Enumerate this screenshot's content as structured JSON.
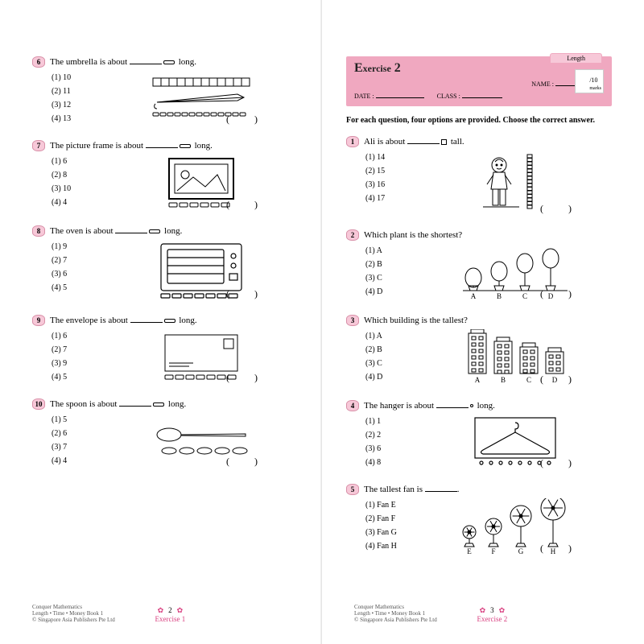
{
  "colors": {
    "pink_badge": "#f7c8d8",
    "pink_header": "#f0a8c0",
    "pink_border": "#d890a8",
    "accent": "#d94080",
    "text": "#000000",
    "page_bg": "#ffffff"
  },
  "left": {
    "questions": [
      {
        "n": "6",
        "text_a": "The umbrella is about ",
        "text_b": " long.",
        "unit": "clip",
        "opts": [
          "10",
          "11",
          "12",
          "13"
        ],
        "svg": "umbrella"
      },
      {
        "n": "7",
        "text_a": "The picture frame is about ",
        "text_b": " long.",
        "unit": "clip",
        "opts": [
          "6",
          "8",
          "10",
          "4"
        ],
        "svg": "frame"
      },
      {
        "n": "8",
        "text_a": "The oven is about ",
        "text_b": " long.",
        "unit": "clip",
        "opts": [
          "9",
          "7",
          "6",
          "5"
        ],
        "svg": "oven"
      },
      {
        "n": "9",
        "text_a": "The envelope is about ",
        "text_b": " long.",
        "unit": "clip",
        "opts": [
          "6",
          "7",
          "9",
          "5"
        ],
        "svg": "envelope"
      },
      {
        "n": "10",
        "text_a": "The spoon is about ",
        "text_b": " long.",
        "unit": "clip",
        "opts": [
          "5",
          "6",
          "7",
          "4"
        ],
        "svg": "spoon"
      }
    ],
    "footer": {
      "book": "Conquer Mathematics",
      "sub": "Length • Time • Money Book 1",
      "pub": "© Singapore Asia Publishers Pte Ltd",
      "page": "2",
      "ex": "Exercise 1"
    }
  },
  "right": {
    "header": {
      "title": "Exercise 2",
      "tab": "Length",
      "name_label": "NAME :",
      "date_label": "DATE :",
      "class_label": "CLASS :",
      "marks": "/10",
      "marks_sub": "marks"
    },
    "instruction": "For each question, four options are provided. Choose the correct answer.",
    "questions": [
      {
        "n": "1",
        "text_a": "Ali is about ",
        "text_b": " tall.",
        "unit": "cube",
        "opts": [
          "14",
          "15",
          "16",
          "17"
        ],
        "svg": "boy"
      },
      {
        "n": "2",
        "text_a": "Which plant is the shortest?",
        "text_b": "",
        "unit": "",
        "opts": [
          "A",
          "B",
          "C",
          "D"
        ],
        "svg": "plants"
      },
      {
        "n": "3",
        "text_a": "Which building is the tallest?",
        "text_b": "",
        "unit": "",
        "opts": [
          "A",
          "B",
          "C",
          "D"
        ],
        "svg": "buildings"
      },
      {
        "n": "4",
        "text_a": "The hanger is about ",
        "text_b": " long.",
        "unit": "pin",
        "opts": [
          "1",
          "2",
          "6",
          "8"
        ],
        "svg": "hanger"
      },
      {
        "n": "5",
        "text_a": "The tallest fan is ",
        "text_b": ".",
        "unit": "",
        "opts": [
          "Fan E",
          "Fan F",
          "Fan G",
          "Fan H"
        ],
        "svg": "fans"
      }
    ],
    "footer": {
      "book": "Conquer Mathematics",
      "sub": "Length • Time • Money Book 1",
      "pub": "© Singapore Asia Publishers Pte Ltd",
      "page": "3",
      "ex": "Exercise 2"
    }
  }
}
